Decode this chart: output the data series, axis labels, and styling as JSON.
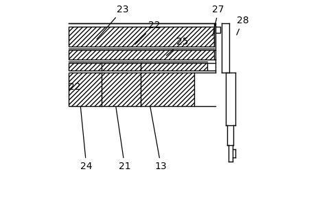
{
  "bg_color": "#ffffff",
  "line_color": "#000000",
  "lw": 1.0,
  "fig_width": 4.75,
  "fig_height": 2.95,
  "dpi": 100,
  "labels_data": [
    {
      "text": "23",
      "lpos": [
        0.3,
        0.955
      ],
      "lend": [
        0.165,
        0.8
      ]
    },
    {
      "text": "22",
      "lpos": [
        0.455,
        0.875
      ],
      "lend": [
        0.355,
        0.775
      ]
    },
    {
      "text": "25",
      "lpos": [
        0.595,
        0.795
      ],
      "lend": [
        0.51,
        0.72
      ]
    },
    {
      "text": "27",
      "lpos": [
        0.775,
        0.955
      ],
      "lend": [
        0.745,
        0.815
      ]
    },
    {
      "text": "28",
      "lpos": [
        0.895,
        0.9
      ],
      "lend": [
        0.862,
        0.82
      ]
    },
    {
      "text": "22",
      "lpos": [
        0.062,
        0.57
      ],
      "lend": [
        0.105,
        0.62
      ]
    },
    {
      "text": "24",
      "lpos": [
        0.12,
        0.175
      ],
      "lend": [
        0.09,
        0.48
      ]
    },
    {
      "text": "21",
      "lpos": [
        0.31,
        0.175
      ],
      "lend": [
        0.265,
        0.48
      ]
    },
    {
      "text": "13",
      "lpos": [
        0.49,
        0.175
      ],
      "lend": [
        0.435,
        0.48
      ]
    }
  ]
}
